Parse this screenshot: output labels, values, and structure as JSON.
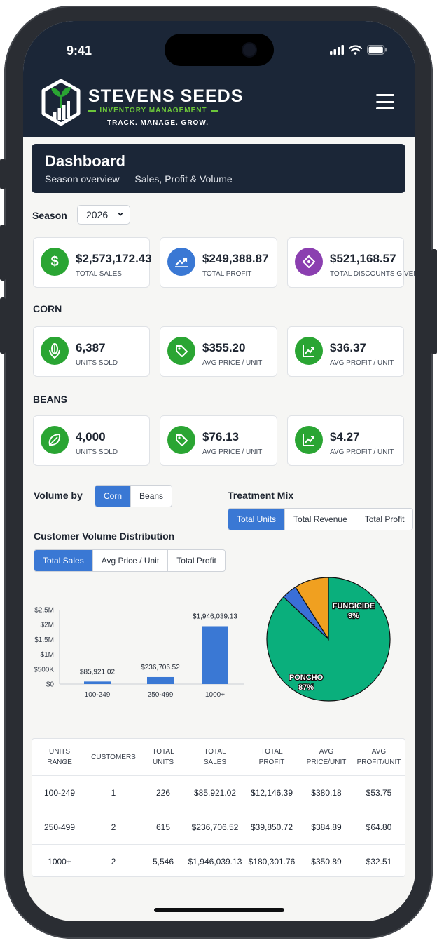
{
  "status_bar": {
    "time": "9:41"
  },
  "brand": {
    "name": "STEVENS SEEDS",
    "subtitle": "INVENTORY MANAGEMENT",
    "tagline": "TRACK. MANAGE. GROW."
  },
  "header": {
    "title": "Dashboard",
    "subtitle": "Season overview — Sales, Profit & Volume"
  },
  "season": {
    "label": "Season",
    "selected": "2026"
  },
  "totals": [
    {
      "value": "$2,573,172.43",
      "caption": "TOTAL SALES",
      "icon": "dollar-icon",
      "color": "#2aa533"
    },
    {
      "value": "$249,388.87",
      "caption": "TOTAL PROFIT",
      "icon": "trend-up-icon",
      "color": "#3a78d4"
    },
    {
      "value": "$521,168.57",
      "caption": "TOTAL DISCOUNTS GIVEN",
      "icon": "discount-tag-icon",
      "color": "#8b3fb0"
    }
  ],
  "corn": {
    "title": "CORN",
    "cards": [
      {
        "value": "6,387",
        "caption": "UNITS SOLD",
        "icon": "corn-icon"
      },
      {
        "value": "$355.20",
        "caption": "AVG PRICE / UNIT",
        "icon": "price-tag-icon"
      },
      {
        "value": "$36.37",
        "caption": "AVG PROFIT / UNIT",
        "icon": "chart-up-icon"
      }
    ]
  },
  "beans": {
    "title": "BEANS",
    "cards": [
      {
        "value": "4,000",
        "caption": "UNITS SOLD",
        "icon": "bean-icon"
      },
      {
        "value": "$76.13",
        "caption": "AVG PRICE / UNIT",
        "icon": "price-tag-icon"
      },
      {
        "value": "$4.27",
        "caption": "AVG PROFIT / UNIT",
        "icon": "chart-up-icon"
      }
    ]
  },
  "colors": {
    "green": "#2aa533",
    "accent": "#3a78d4",
    "navy": "#1b2637"
  },
  "volume_by": {
    "label": "Volume by",
    "options": [
      "Corn",
      "Beans"
    ],
    "selected": "Corn"
  },
  "treatment_mix": {
    "label": "Treatment Mix",
    "options": [
      "Total Units",
      "Total Revenue",
      "Total Profit"
    ],
    "selected": "Total Units"
  },
  "distribution": {
    "label": "Customer Volume Distribution",
    "options": [
      "Total Sales",
      "Avg Price / Unit",
      "Total Profit"
    ],
    "selected": "Total Sales"
  },
  "chart_data": [
    {
      "type": "bar",
      "categories": [
        "100-249",
        "250-499",
        "1000+"
      ],
      "values": [
        85921.02,
        236706.52,
        1946039.13
      ],
      "data_labels": [
        "$85,921.02",
        "$236,706.52",
        "$1,946,039.13"
      ],
      "y_ticks": [
        "$0",
        "$500K",
        "$1M",
        "$1.5M",
        "$2M",
        "$2.5M"
      ],
      "ylim": [
        0,
        2500000
      ],
      "color": "#3a78d4"
    },
    {
      "type": "pie",
      "slices": [
        {
          "label": "PONCHO",
          "pct_label": "87%",
          "value": 87,
          "color": "#0aaf7c"
        },
        {
          "label": "",
          "pct_label": "",
          "value": 4,
          "color": "#3a6fd8"
        },
        {
          "label": "FUNGICIDE",
          "pct_label": "9%",
          "value": 9,
          "color": "#f0a020"
        }
      ]
    }
  ],
  "table": {
    "headers": [
      [
        "UNITS",
        "RANGE"
      ],
      [
        "CUSTOMERS",
        ""
      ],
      [
        "TOTAL",
        "UNITS"
      ],
      [
        "TOTAL",
        "SALES"
      ],
      [
        "TOTAL",
        "PROFIT"
      ],
      [
        "AVG",
        "PRICE/UNIT"
      ],
      [
        "AVG",
        "PROFIT/UNIT"
      ]
    ],
    "rows": [
      [
        "100-249",
        "1",
        "226",
        "$85,921.02",
        "$12,146.39",
        "$380.18",
        "$53.75"
      ],
      [
        "250-499",
        "2",
        "615",
        "$236,706.52",
        "$39,850.72",
        "$384.89",
        "$64.80"
      ],
      [
        "1000+",
        "2",
        "5,546",
        "$1,946,039.13",
        "$180,301.76",
        "$350.89",
        "$32.51"
      ]
    ]
  }
}
